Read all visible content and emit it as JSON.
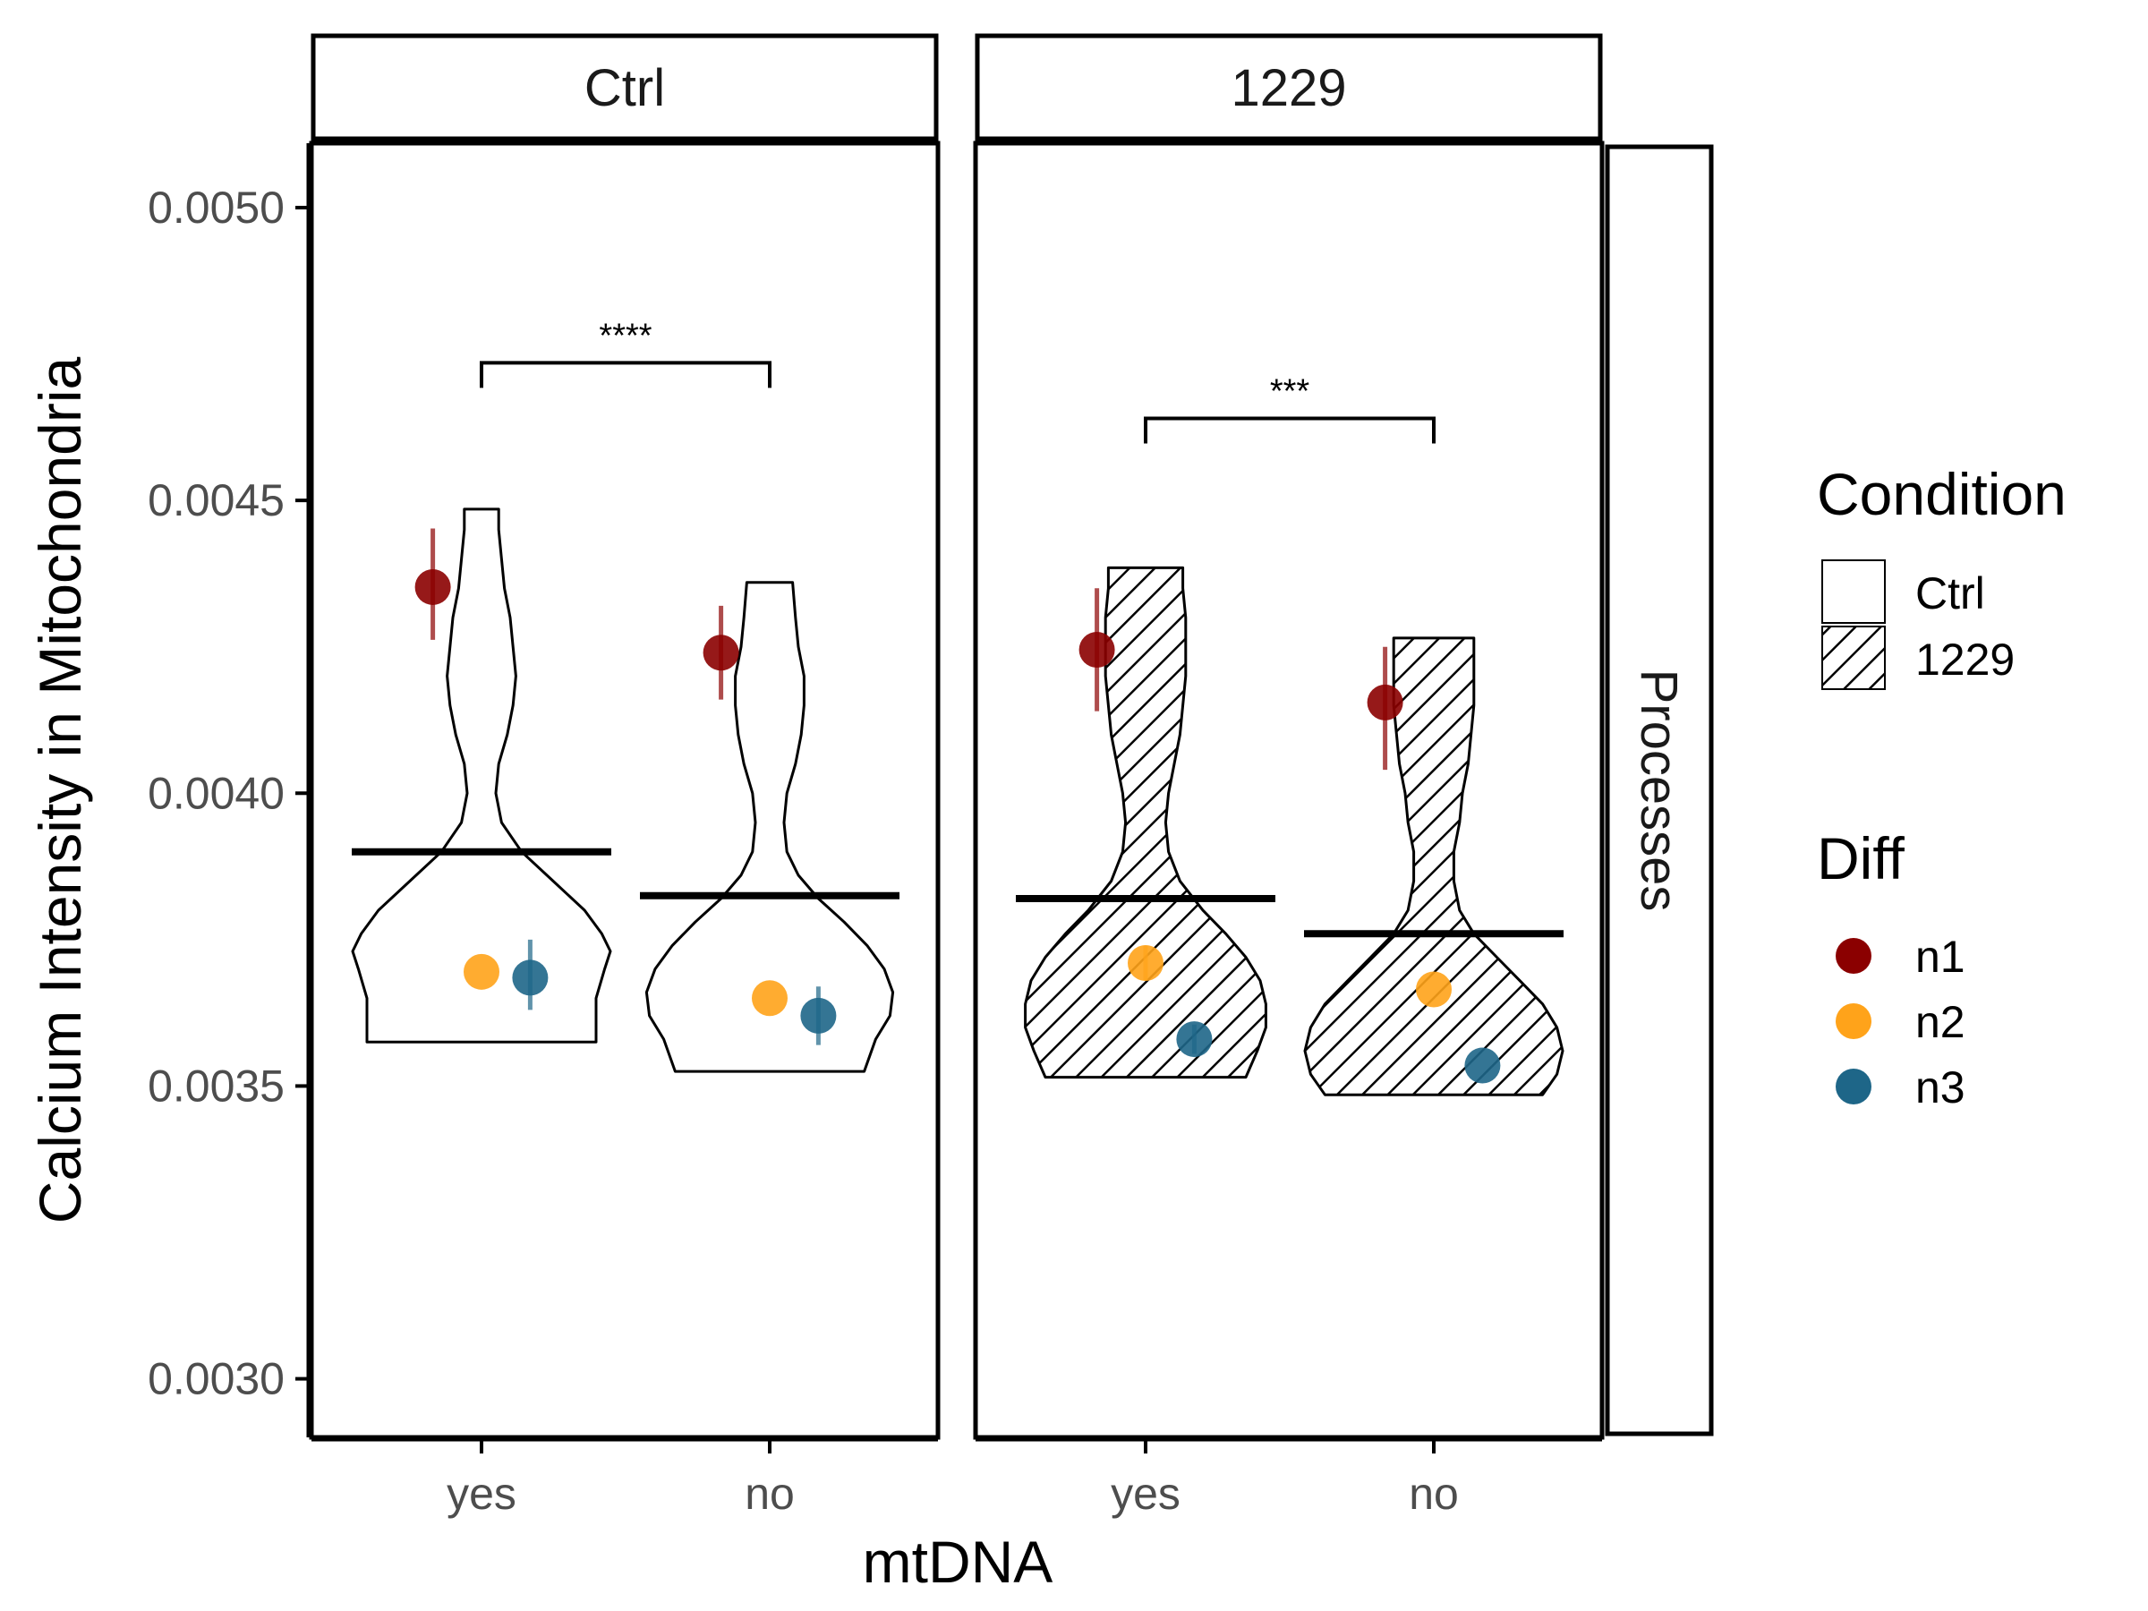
{
  "chart_data": {
    "type": "violin",
    "title": "",
    "xlabel": "mtDNA",
    "ylabel": "Calcium Intensity in Mitochondria",
    "ylim": [
      0.0029,
      0.00511
    ],
    "y_ticks": [
      "0.0030",
      "0.0035",
      "0.0040",
      "0.0045",
      "0.0050"
    ],
    "y_tick_values": [
      0.003,
      0.0035,
      0.004,
      0.0045,
      0.005
    ],
    "categories": [
      "yes",
      "no"
    ],
    "row_strip": "Processes",
    "grid": false,
    "legend_position": "right",
    "condition_legend": {
      "title": "Condition",
      "items": [
        {
          "label": "Ctrl",
          "fill": "none"
        },
        {
          "label": "1229",
          "fill": "hatched"
        }
      ]
    },
    "diff_legend": {
      "title": "Diff",
      "items": [
        {
          "label": "n1",
          "color": "#8b0000"
        },
        {
          "label": "n2",
          "color": "#ffa31a"
        },
        {
          "label": "n3",
          "color": "#1e6688"
        }
      ]
    },
    "panels": [
      {
        "strip": "Ctrl",
        "fill": "none",
        "groups": [
          {
            "category": "yes",
            "mean": 0.0039,
            "violin": {
              "min": 0.003575,
              "max": 0.004485,
              "profile": [
                [
                  0.003575,
                  0.4
                ],
                [
                  0.00365,
                  0.4
                ],
                [
                  0.0037,
                  0.43
                ],
                [
                  0.00373,
                  0.45
                ],
                [
                  0.00376,
                  0.42
                ],
                [
                  0.0038,
                  0.36
                ],
                [
                  0.00385,
                  0.25
                ],
                [
                  0.0039,
                  0.14
                ],
                [
                  0.00395,
                  0.07
                ],
                [
                  0.004,
                  0.05
                ],
                [
                  0.00405,
                  0.06
                ],
                [
                  0.0041,
                  0.09
                ],
                [
                  0.00415,
                  0.11
                ],
                [
                  0.0042,
                  0.12
                ],
                [
                  0.00425,
                  0.11
                ],
                [
                  0.0043,
                  0.1
                ],
                [
                  0.00435,
                  0.08
                ],
                [
                  0.0044,
                  0.07
                ],
                [
                  0.00445,
                  0.06
                ],
                [
                  0.004485,
                  0.06
                ]
              ]
            },
            "points": [
              {
                "diff": "n1",
                "offset": -0.17,
                "y": 0.004352,
                "lo": 0.004262,
                "hi": 0.004452
              },
              {
                "diff": "n2",
                "offset": 0.0,
                "y": 0.003695,
                "lo": 0.003695,
                "hi": 0.003695
              },
              {
                "diff": "n3",
                "offset": 0.17,
                "y": 0.003685,
                "lo": 0.00363,
                "hi": 0.00375
              }
            ]
          },
          {
            "category": "no",
            "mean": 0.003825,
            "violin": {
              "min": 0.003525,
              "max": 0.00436,
              "profile": [
                [
                  0.003525,
                  0.33
                ],
                [
                  0.00358,
                  0.37
                ],
                [
                  0.00362,
                  0.42
                ],
                [
                  0.00366,
                  0.43
                ],
                [
                  0.0037,
                  0.4
                ],
                [
                  0.00374,
                  0.34
                ],
                [
                  0.00378,
                  0.26
                ],
                [
                  0.00382,
                  0.17
                ],
                [
                  0.00386,
                  0.1
                ],
                [
                  0.0039,
                  0.06
                ],
                [
                  0.00395,
                  0.05
                ],
                [
                  0.004,
                  0.06
                ],
                [
                  0.00405,
                  0.09
                ],
                [
                  0.0041,
                  0.11
                ],
                [
                  0.00415,
                  0.12
                ],
                [
                  0.0042,
                  0.12
                ],
                [
                  0.00425,
                  0.1
                ],
                [
                  0.0043,
                  0.09
                ],
                [
                  0.00436,
                  0.08
                ]
              ]
            },
            "points": [
              {
                "diff": "n1",
                "offset": -0.17,
                "y": 0.00424,
                "lo": 0.00416,
                "hi": 0.00432
              },
              {
                "diff": "n2",
                "offset": 0.0,
                "y": 0.00365,
                "lo": 0.00365,
                "hi": 0.00365
              },
              {
                "diff": "n3",
                "offset": 0.17,
                "y": 0.00362,
                "lo": 0.00357,
                "hi": 0.00367
              }
            ]
          }
        ],
        "comparison": {
          "label": "****",
          "y": 0.004735
        }
      },
      {
        "strip": "1229",
        "fill": "hatched",
        "groups": [
          {
            "category": "yes",
            "mean": 0.00382,
            "violin": {
              "min": 0.003515,
              "max": 0.004385,
              "profile": [
                [
                  0.003515,
                  0.35
                ],
                [
                  0.00356,
                  0.39
                ],
                [
                  0.0036,
                  0.42
                ],
                [
                  0.00364,
                  0.42
                ],
                [
                  0.00368,
                  0.4
                ],
                [
                  0.00372,
                  0.35
                ],
                [
                  0.00376,
                  0.28
                ],
                [
                  0.0038,
                  0.2
                ],
                [
                  0.00385,
                  0.12
                ],
                [
                  0.0039,
                  0.08
                ],
                [
                  0.00395,
                  0.07
                ],
                [
                  0.004,
                  0.08
                ],
                [
                  0.00405,
                  0.1
                ],
                [
                  0.0041,
                  0.12
                ],
                [
                  0.00415,
                  0.13
                ],
                [
                  0.0042,
                  0.14
                ],
                [
                  0.00425,
                  0.14
                ],
                [
                  0.0043,
                  0.14
                ],
                [
                  0.00435,
                  0.13
                ],
                [
                  0.004385,
                  0.13
                ]
              ]
            },
            "points": [
              {
                "diff": "n1",
                "offset": -0.17,
                "y": 0.004245,
                "lo": 0.00414,
                "hi": 0.00435
              },
              {
                "diff": "n2",
                "offset": 0.0,
                "y": 0.00371,
                "lo": 0.00368,
                "hi": 0.00374
              },
              {
                "diff": "n3",
                "offset": 0.17,
                "y": 0.00358,
                "lo": 0.003555,
                "hi": 0.003605
              }
            ]
          },
          {
            "category": "no",
            "mean": 0.00376,
            "violin": {
              "min": 0.003485,
              "max": 0.004265,
              "profile": [
                [
                  0.003485,
                  0.38
                ],
                [
                  0.00352,
                  0.43
                ],
                [
                  0.00356,
                  0.45
                ],
                [
                  0.0036,
                  0.43
                ],
                [
                  0.00364,
                  0.38
                ],
                [
                  0.00368,
                  0.3
                ],
                [
                  0.00372,
                  0.22
                ],
                [
                  0.00376,
                  0.14
                ],
                [
                  0.0038,
                  0.09
                ],
                [
                  0.00385,
                  0.07
                ],
                [
                  0.0039,
                  0.07
                ],
                [
                  0.00395,
                  0.09
                ],
                [
                  0.004,
                  0.1
                ],
                [
                  0.00405,
                  0.12
                ],
                [
                  0.0041,
                  0.13
                ],
                [
                  0.00415,
                  0.14
                ],
                [
                  0.0042,
                  0.14
                ],
                [
                  0.004265,
                  0.14
                ]
              ]
            },
            "points": [
              {
                "diff": "n1",
                "offset": -0.17,
                "y": 0.004155,
                "lo": 0.00404,
                "hi": 0.00425
              },
              {
                "diff": "n2",
                "offset": 0.0,
                "y": 0.003665,
                "lo": 0.003665,
                "hi": 0.003665
              },
              {
                "diff": "n3",
                "offset": 0.17,
                "y": 0.003535,
                "lo": 0.003535,
                "hi": 0.003535
              }
            ]
          }
        ],
        "comparison": {
          "label": "***",
          "y": 0.00464
        }
      }
    ]
  }
}
